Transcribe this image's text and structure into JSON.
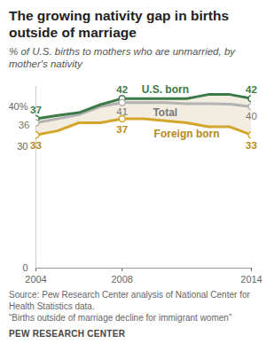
{
  "chart_data": {
    "type": "line",
    "title": "The growing nativity gap in births outside of marriage",
    "subtitle": "% of U.S. births to mothers who are unmarried, by mother's nativity",
    "source": "Source: Pew Research Center analysis of National Center for Health Statistics data.",
    "note": "“Births outside of marriage decline for immigrant women”",
    "credit": "PEW RESEARCH CENTER",
    "x": [
      2004,
      2005,
      2006,
      2007,
      2008,
      2009,
      2010,
      2011,
      2012,
      2013,
      2014
    ],
    "xlim": [
      2004,
      2014
    ],
    "xticks": [
      2004,
      2008,
      2014
    ],
    "ylim": [
      0,
      45
    ],
    "yticks": [
      0,
      30,
      {
        "value": 40,
        "label": "40%"
      }
    ],
    "data_labels": true,
    "marker": "circle",
    "series": [
      {
        "name": "U.S. born",
        "color": "#3d7a4a",
        "values": [
          37,
          37.8,
          38.5,
          40.5,
          42,
          42,
          42,
          42,
          43,
          43,
          42
        ],
        "value_labels": [
          "37",
          null,
          null,
          null,
          "42",
          null,
          null,
          null,
          null,
          null,
          "42"
        ]
      },
      {
        "name": "Total",
        "color": "#b3b3b3",
        "values": [
          36,
          37,
          38,
          40,
          41,
          41,
          41,
          40.7,
          40.7,
          40.6,
          40
        ],
        "value_labels": [
          "36",
          null,
          null,
          null,
          "41",
          null,
          null,
          null,
          null,
          null,
          "40"
        ]
      },
      {
        "name": "Foreign born",
        "color": "#d3a52a",
        "values": [
          33,
          34,
          36,
          36,
          37,
          37,
          36.5,
          36,
          35,
          35,
          33
        ],
        "value_labels": [
          "33",
          null,
          null,
          null,
          "37",
          null,
          null,
          null,
          null,
          null,
          "33"
        ]
      }
    ]
  }
}
